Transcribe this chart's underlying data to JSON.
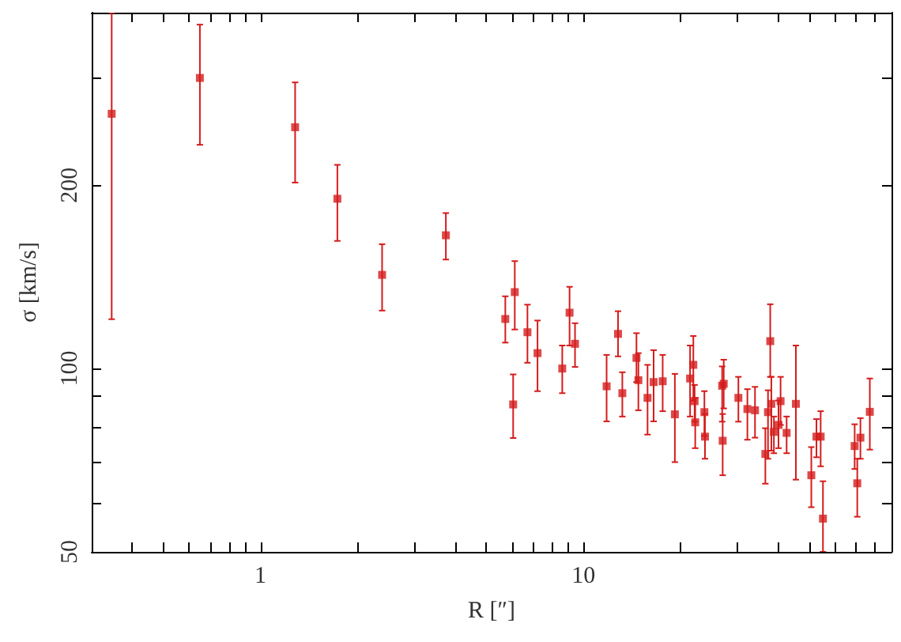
{
  "chart_data": {
    "type": "scatter",
    "xlabel": "R [″]",
    "ylabel": "σ [km/s]",
    "log": "xy",
    "marker": "square",
    "xlim": [
      0.3,
      90
    ],
    "ylim": [
      50,
      384
    ],
    "xticks": [
      {
        "value": 0.4,
        "label": null
      },
      {
        "value": 0.5,
        "label": null
      },
      {
        "value": 0.6,
        "label": null
      },
      {
        "value": 0.7,
        "label": null
      },
      {
        "value": 0.8,
        "label": null
      },
      {
        "value": 0.9,
        "label": null
      },
      1,
      {
        "value": 2,
        "label": null
      },
      {
        "value": 3,
        "label": null
      },
      {
        "value": 4,
        "label": null
      },
      {
        "value": 5,
        "label": null
      },
      {
        "value": 6,
        "label": null
      },
      {
        "value": 7,
        "label": null
      },
      {
        "value": 8,
        "label": null
      },
      {
        "value": 9,
        "label": null
      },
      10,
      {
        "value": 20,
        "label": null
      },
      {
        "value": 30,
        "label": null
      },
      {
        "value": 40,
        "label": null
      },
      {
        "value": 50,
        "label": null
      },
      {
        "value": 60,
        "label": null
      },
      {
        "value": 70,
        "label": null
      },
      {
        "value": 80,
        "label": null
      },
      {
        "value": 90,
        "label": null
      }
    ],
    "yticks": [
      50,
      {
        "value": 60,
        "label": null
      },
      {
        "value": 70,
        "label": null
      },
      {
        "value": 80,
        "label": null
      },
      {
        "value": 90,
        "label": null
      },
      100,
      200,
      {
        "value": 300,
        "label": null
      }
    ],
    "series": [
      {
        "color": "#d41c1c",
        "x": [
          0.346,
          0.649,
          1.28,
          1.73,
          2.38,
          3.75,
          5.73,
          6.13,
          6.06,
          6.71,
          7.21,
          8.6,
          9.06,
          9.42,
          11.8,
          12.8,
          13.2,
          14.6,
          14.8,
          15.8,
          16.5,
          17.6,
          19.2,
          21.4,
          21.9,
          22.1,
          22.2,
          23.7,
          23.8,
          26.9,
          27.2,
          27.0,
          30.2,
          32.2,
          34.0,
          36.6,
          37.3,
          37.9,
          38.2,
          38.9,
          40.2,
          40.8,
          42.6,
          45.5,
          50.8,
          52.7,
          54.3,
          55.2,
          69.2,
          70.5,
          72.1,
          77.1
        ],
        "values": [
          262,
          300,
          249,
          190,
          142.5,
          165.5,
          120.6,
          133.5,
          87.3,
          114.7,
          106,
          100,
          123.5,
          109.8,
          93.5,
          114,
          91.1,
          104.1,
          95.7,
          89.5,
          95,
          95.3,
          84.1,
          96.3,
          101.4,
          88.4,
          81.6,
          84.8,
          77.3,
          93.7,
          94.4,
          76.1,
          89.5,
          85.8,
          85.4,
          72.4,
          84.8,
          110.9,
          87.5,
          78.7,
          80.8,
          88.4,
          78.4,
          87.5,
          66.8,
          77.3,
          77.3,
          56.7,
          74.6,
          64.8,
          77,
          84.9
        ],
        "errors": [
          [
            120.5,
            384
          ],
          [
            233,
            367
          ],
          [
            202,
            295
          ],
          [
            162,
            216
          ],
          [
            124.5,
            160
          ],
          [
            151,
            180
          ],
          [
            110.3,
            131.4
          ],
          [
            115.9,
            150.1
          ],
          [
            76.9,
            97.8
          ],
          [
            102.2,
            127.3
          ],
          [
            91.8,
            119.9
          ],
          [
            91.1,
            109.1
          ],
          [
            109.1,
            136.2
          ],
          [
            100.6,
            118.7
          ],
          [
            81.9,
            105.3
          ],
          [
            104.7,
            124.2
          ],
          [
            83.4,
            98.6
          ],
          [
            95,
            114.3
          ],
          [
            85.4,
            106
          ],
          [
            77.9,
            101.4
          ],
          [
            81.9,
            107.2
          ],
          [
            85.1,
            105.3
          ],
          [
            70.2,
            98
          ],
          [
            83.4,
            109.1
          ],
          [
            88.6,
            113.1
          ],
          [
            81.8,
            94
          ],
          [
            74,
            89.5
          ],
          [
            77.5,
            91.8
          ],
          [
            71.1,
            84.2
          ],
          [
            81.8,
            100.8
          ],
          [
            86,
            103.4
          ],
          [
            66.8,
            84.2
          ],
          [
            81.8,
            96.9
          ],
          [
            76.4,
            92.5
          ],
          [
            77,
            93.3
          ],
          [
            64.7,
            79.8
          ],
          [
            71.1,
            92.1
          ],
          [
            96.9,
            127.5
          ],
          [
            73.3,
            96.9
          ],
          [
            72.6,
            83.4
          ],
          [
            74,
            88.6
          ],
          [
            80.8,
            96.9
          ],
          [
            72.6,
            83.4
          ],
          [
            65.7,
            109.1
          ],
          [
            59.2,
            74.3
          ],
          [
            71.5,
            82.6
          ],
          [
            69.1,
            85.1
          ],
          [
            50,
            65.3
          ],
          [
            68.4,
            81
          ],
          [
            57.1,
            71.1
          ],
          [
            71.1,
            82.9
          ],
          [
            73.6,
            96.3
          ]
        ]
      }
    ]
  }
}
